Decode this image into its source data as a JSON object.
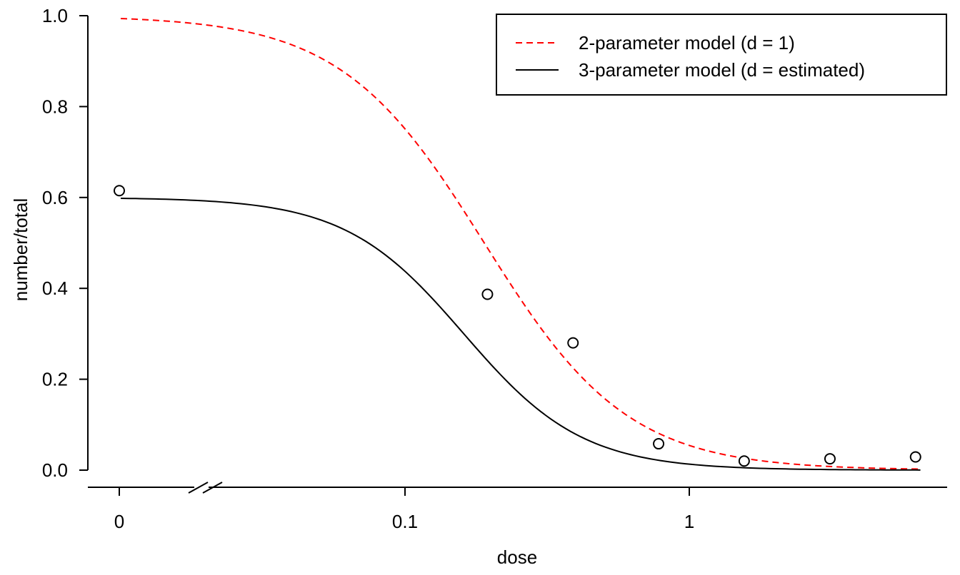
{
  "chart_data": {
    "type": "scatter",
    "title": "",
    "xlabel": "dose",
    "ylabel": "number/total",
    "x_scale": "log",
    "x_axis_break": true,
    "xlim": [
      0.0025,
      9
    ],
    "ylim": [
      0.0,
      1.0
    ],
    "x_ticks": [
      {
        "value": 0,
        "label": "0"
      },
      {
        "value": 0.1,
        "label": "0.1"
      },
      {
        "value": 1,
        "label": "1"
      }
    ],
    "y_ticks": [
      {
        "value": 0.0,
        "label": "0.0"
      },
      {
        "value": 0.2,
        "label": "0.2"
      },
      {
        "value": 0.4,
        "label": "0.4"
      },
      {
        "value": 0.6,
        "label": "0.6"
      },
      {
        "value": 0.8,
        "label": "0.8"
      },
      {
        "value": 1.0,
        "label": "1.0"
      }
    ],
    "points": [
      {
        "x": 0,
        "y": 0.615
      },
      {
        "x": 0.195,
        "y": 0.387
      },
      {
        "x": 0.39,
        "y": 0.28
      },
      {
        "x": 0.78,
        "y": 0.058
      },
      {
        "x": 1.56,
        "y": 0.02
      },
      {
        "x": 3.125,
        "y": 0.025
      },
      {
        "x": 6.25,
        "y": 0.029
      }
    ],
    "point_color": "#000000",
    "point_fill": "#ffffff",
    "series": [
      {
        "name": "2-parameter model (d = 1)",
        "color": "#ff0000",
        "dash": "dashed",
        "model": {
          "d": 1.0,
          "b": 1.72,
          "e": 0.19
        },
        "x": [
          0.01,
          6.5
        ]
      },
      {
        "name": "3-parameter model (d = estimated)",
        "color": "#000000",
        "dash": "solid",
        "model": {
          "d": 0.6,
          "b": 2.08,
          "e": 0.161
        },
        "x": [
          0.01,
          6.5
        ]
      }
    ],
    "legend": {
      "position": "top-right",
      "border": true
    },
    "grid": false
  }
}
